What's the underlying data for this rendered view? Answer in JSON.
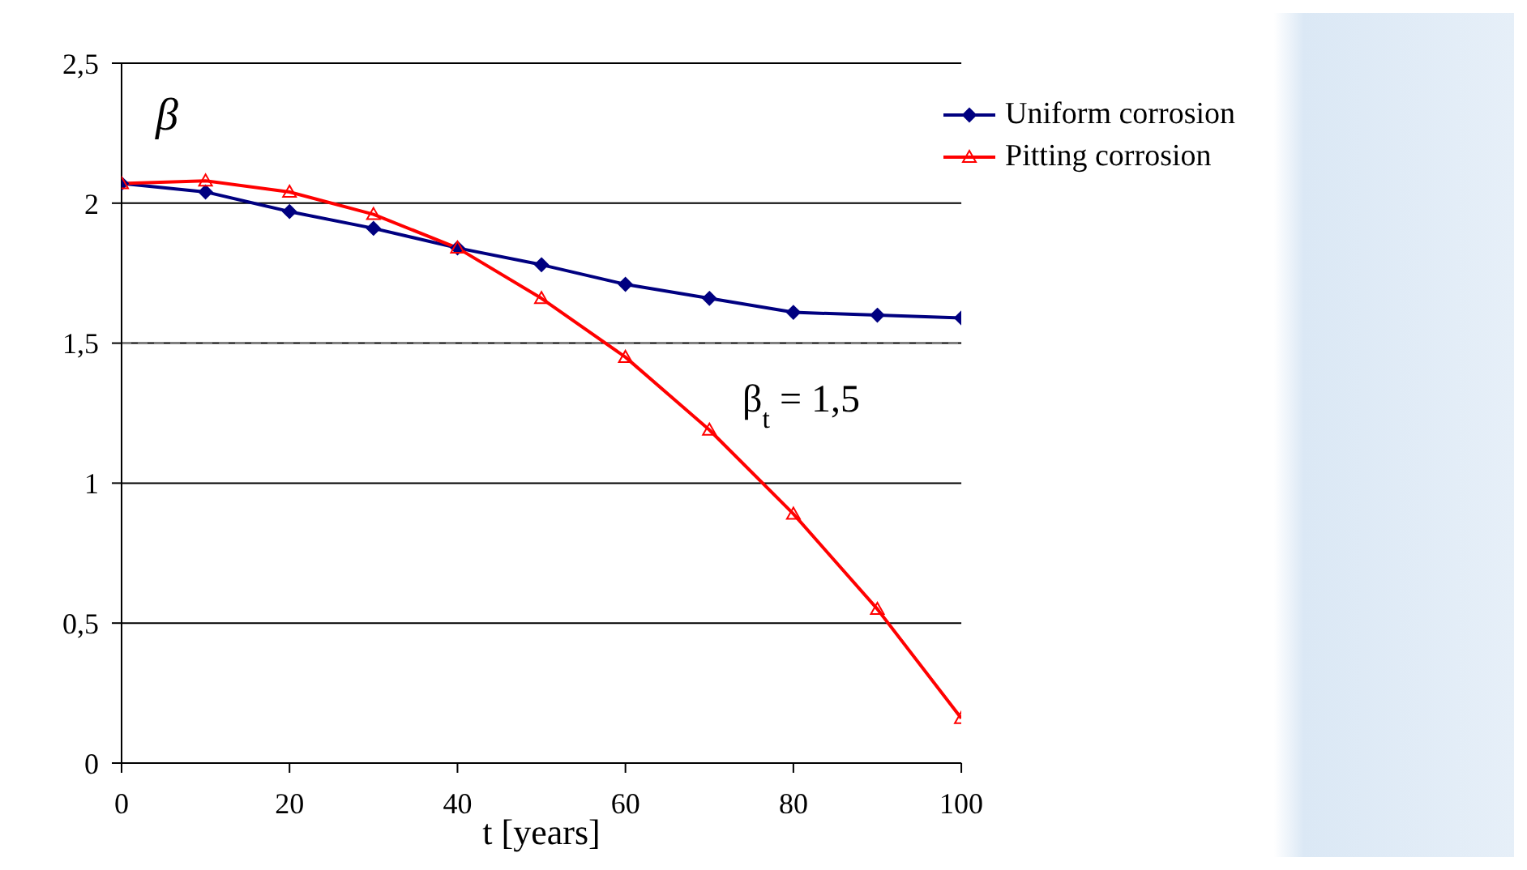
{
  "chart_data": {
    "type": "line",
    "ylabel": "β",
    "xlabel": "t [years]",
    "x": [
      0,
      10,
      20,
      30,
      40,
      50,
      60,
      70,
      80,
      90,
      100
    ],
    "series": [
      {
        "name": "Uniform corrosion",
        "color": "#000080",
        "marker": "diamond",
        "values": [
          2.07,
          2.04,
          1.97,
          1.91,
          1.84,
          1.78,
          1.71,
          1.66,
          1.61,
          1.6,
          1.59
        ]
      },
      {
        "name": "Pitting corrosion",
        "color": "#ff0000",
        "marker": "triangle",
        "values": [
          2.07,
          2.08,
          2.04,
          1.96,
          1.84,
          1.66,
          1.45,
          1.19,
          0.89,
          0.55,
          0.16
        ]
      }
    ],
    "xlim": [
      0,
      100
    ],
    "xticks": [
      0,
      20,
      40,
      60,
      80,
      100
    ],
    "ylim": [
      0,
      2.5
    ],
    "yticks": [
      {
        "value": 0,
        "label": "0"
      },
      {
        "value": 0.5,
        "label": "0,5"
      },
      {
        "value": 1,
        "label": "1"
      },
      {
        "value": 1.5,
        "label": "1,5"
      },
      {
        "value": 2,
        "label": "2"
      },
      {
        "value": 2.5,
        "label": "2,5"
      }
    ],
    "ref_lines": [
      {
        "axis": "y",
        "value": 1.5,
        "label": "β$_{t}$ = 1,5",
        "line_style": "dashed",
        "color": "#808080"
      }
    ],
    "grid": "y",
    "legend": "top right"
  }
}
